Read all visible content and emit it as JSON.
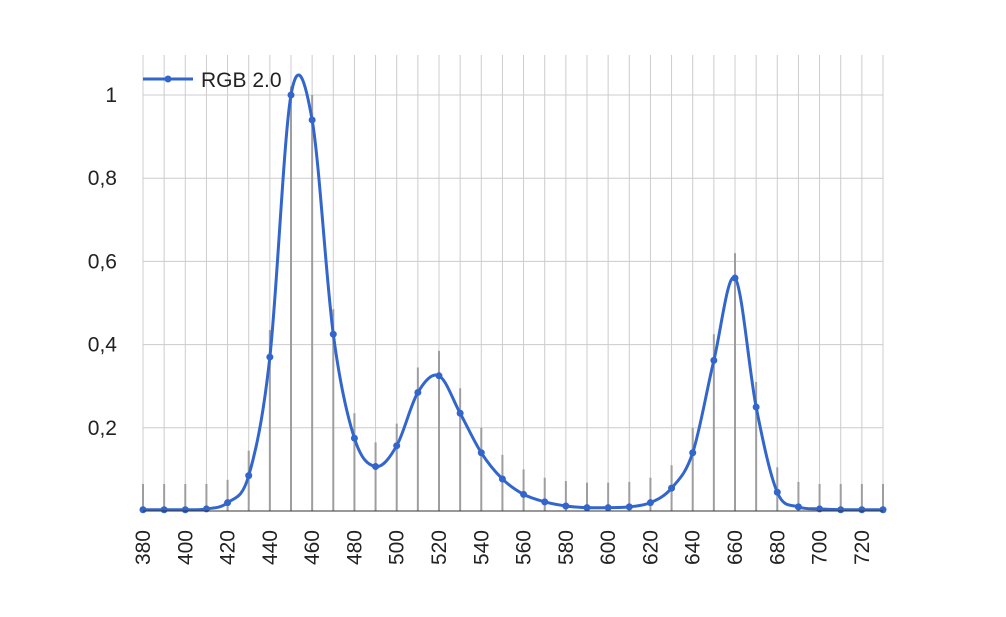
{
  "chart_data": {
    "type": "line",
    "title": "",
    "xlabel": "",
    "ylabel": "",
    "xlim": [
      380,
      730
    ],
    "ylim": [
      0,
      1.08
    ],
    "grid": true,
    "legend": {
      "position": "top-left",
      "entries": [
        "RGB 2.0"
      ]
    },
    "x_tick_labels": [
      "380",
      "400",
      "420",
      "440",
      "460",
      "480",
      "500",
      "520",
      "540",
      "560",
      "580",
      "600",
      "620",
      "640",
      "660",
      "680",
      "700",
      "720"
    ],
    "y_tick_labels": [
      "0,2",
      "0,4",
      "0,6",
      "0,8",
      "1"
    ],
    "y_ticks": [
      0.2,
      0.4,
      0.6,
      0.8,
      1.0
    ],
    "series": [
      {
        "name": "RGB 2.0",
        "color": "#3366cc",
        "x": [
          380,
          390,
          400,
          410,
          420,
          430,
          440,
          450,
          460,
          470,
          480,
          490,
          500,
          510,
          520,
          530,
          540,
          550,
          560,
          570,
          580,
          590,
          600,
          610,
          620,
          630,
          640,
          650,
          660,
          670,
          680,
          690,
          700,
          710,
          720,
          730
        ],
        "values": [
          0.003,
          0.003,
          0.003,
          0.005,
          0.02,
          0.085,
          0.37,
          1.0,
          0.94,
          0.425,
          0.175,
          0.107,
          0.157,
          0.285,
          0.325,
          0.235,
          0.14,
          0.077,
          0.04,
          0.022,
          0.012,
          0.008,
          0.008,
          0.01,
          0.02,
          0.055,
          0.14,
          0.362,
          0.56,
          0.25,
          0.045,
          0.01,
          0.005,
          0.003,
          0.003,
          0.003
        ]
      }
    ],
    "gray_bar_values": [
      0.065,
      0.065,
      0.065,
      0.065,
      0.075,
      0.145,
      0.435,
      1.02,
      1.0,
      0.485,
      0.235,
      0.165,
      0.21,
      0.345,
      0.385,
      0.295,
      0.2,
      0.135,
      0.1,
      0.08,
      0.072,
      0.068,
      0.068,
      0.07,
      0.08,
      0.11,
      0.2,
      0.425,
      0.62,
      0.31,
      0.105,
      0.07,
      0.065,
      0.065,
      0.065,
      0.065
    ],
    "gray_bar_color": "#9e9e9e"
  }
}
